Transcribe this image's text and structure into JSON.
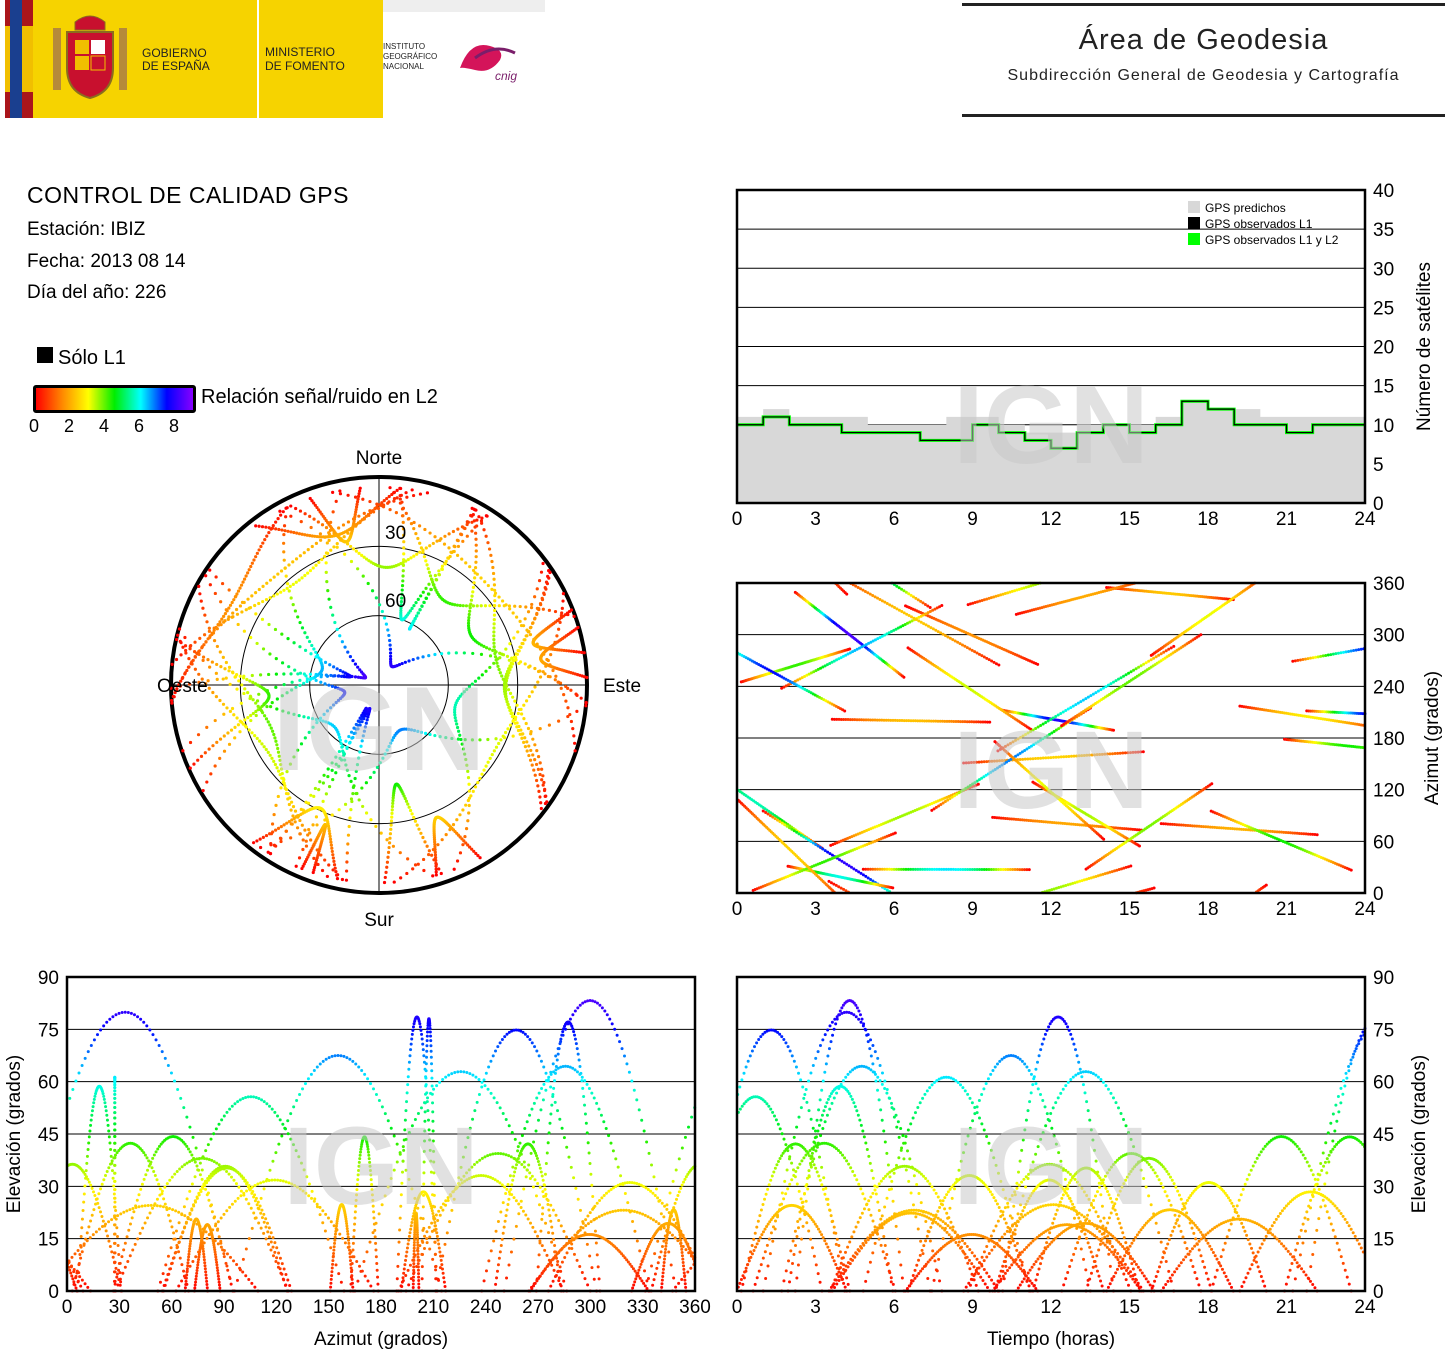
{
  "header": {
    "gov_label_1": "GOBIERNO",
    "gov_label_2": "DE ESPAÑA",
    "ministry_1": "MINISTERIO",
    "ministry_2": "DE FOMENTO",
    "institute_1": "INSTITUTO",
    "institute_2": "GEOGRÁFICO",
    "institute_3": "NACIONAL",
    "cnig_logo_text": "cnig",
    "area_title": "Área de Geodesia",
    "area_subtitle": "Subdirección General de Geodesia y Cartografía"
  },
  "report": {
    "title": "CONTROL DE CALIDAD GPS",
    "station": "Estación: IBIZ",
    "date": "Fecha: 2013 08 14",
    "doy": "Día del año: 226"
  },
  "legend": {
    "l1_only": "Sólo L1",
    "snr_label": "Relación señal/ruido en L2",
    "snr_ticks": [
      "0",
      "2",
      "4",
      "6",
      "8"
    ],
    "snr_colors": [
      "#ff0000",
      "#ff8800",
      "#ffff00",
      "#00ee00",
      "#00ffff",
      "#0000ff",
      "#8800ff"
    ]
  },
  "watermark": "IGN",
  "colors": {
    "predicted": "#d8d8d8",
    "observed_l1": "#000000",
    "observed_l1_l2": "#00ff00",
    "grid": "#000000"
  },
  "chart_data": [
    {
      "type": "line",
      "id": "satellite-count",
      "ylabel": "Número de satélites",
      "xlim": [
        0,
        24
      ],
      "ylim": [
        0,
        40
      ],
      "x_ticks": [
        "0",
        "3",
        "6",
        "9",
        "12",
        "15",
        "18",
        "21",
        "24"
      ],
      "y_ticks": [
        "0",
        "5",
        "10",
        "15",
        "20",
        "25",
        "30",
        "35",
        "40"
      ],
      "legend": [
        "GPS predichos",
        "GPS observados L1",
        "GPS observados L1 y L2"
      ],
      "grid": true,
      "series": [
        {
          "name": "GPS predichos",
          "x": [
            0,
            1,
            2,
            3,
            4,
            5,
            6,
            7,
            8,
            9,
            10,
            11,
            12,
            13,
            14,
            15,
            16,
            17,
            18,
            19,
            20,
            21,
            22,
            23,
            24
          ],
          "y": [
            11,
            12,
            11,
            11,
            11,
            10,
            10,
            10,
            11,
            11,
            10,
            9,
            9,
            10,
            10,
            10,
            11,
            13,
            12,
            12,
            11,
            11,
            11,
            11,
            12
          ]
        },
        {
          "name": "GPS observados L1",
          "x": [
            0,
            1,
            2,
            3,
            4,
            5,
            6,
            7,
            8,
            9,
            10,
            11,
            12,
            13,
            14,
            15,
            16,
            17,
            18,
            19,
            20,
            21,
            22,
            23,
            24
          ],
          "y": [
            10,
            11,
            10,
            10,
            9,
            9,
            9,
            8,
            8,
            10,
            9,
            8,
            7,
            9,
            10,
            9,
            10,
            13,
            12,
            10,
            10,
            9,
            10,
            10,
            10
          ]
        },
        {
          "name": "GPS observados L1 y L2",
          "x": [
            0,
            1,
            2,
            3,
            4,
            5,
            6,
            7,
            8,
            9,
            10,
            11,
            12,
            13,
            14,
            15,
            16,
            17,
            18,
            19,
            20,
            21,
            22,
            23,
            24
          ],
          "y": [
            10,
            11,
            10,
            10,
            9,
            9,
            9,
            8,
            8,
            10,
            9,
            8,
            7,
            9,
            10,
            9,
            10,
            13,
            12,
            10,
            10,
            9,
            10,
            10,
            10
          ]
        }
      ]
    },
    {
      "type": "scatter",
      "id": "skyplot",
      "polar": true,
      "direction_labels": {
        "north": "Norte",
        "south": "Sur",
        "east": "Este",
        "west": "Oeste"
      },
      "ring_labels": [
        "30",
        "60"
      ],
      "tracks_note_values": "elevation/azimuth tracks of GPS satellites colored by L2 SNR"
    },
    {
      "type": "scatter",
      "id": "azimuth-vs-time",
      "ylabel": "Azimut (grados)",
      "xlim": [
        0,
        24
      ],
      "ylim": [
        0,
        360
      ],
      "x_ticks": [
        "0",
        "3",
        "6",
        "9",
        "12",
        "15",
        "18",
        "21",
        "24"
      ],
      "y_ticks": [
        "0",
        "60",
        "120",
        "180",
        "240",
        "300",
        "360"
      ],
      "grid": true
    },
    {
      "type": "scatter",
      "id": "elevation-vs-azimuth",
      "xlabel": "Azimut (grados)",
      "ylabel": "Elevación (grados)",
      "xlim": [
        0,
        360
      ],
      "ylim": [
        0,
        90
      ],
      "x_ticks": [
        "0",
        "30",
        "60",
        "90",
        "120",
        "150",
        "180",
        "210",
        "240",
        "270",
        "300",
        "330",
        "360"
      ],
      "y_ticks": [
        "0",
        "15",
        "30",
        "45",
        "60",
        "75",
        "90"
      ],
      "grid": true
    },
    {
      "type": "scatter",
      "id": "elevation-vs-time",
      "xlabel": "Tiempo (horas)",
      "ylabel": "Elevación (grados)",
      "xlim": [
        0,
        24
      ],
      "ylim": [
        0,
        90
      ],
      "x_ticks": [
        "0",
        "3",
        "6",
        "9",
        "12",
        "15",
        "18",
        "21",
        "24"
      ],
      "y_ticks": [
        "0",
        "15",
        "30",
        "45",
        "60",
        "75",
        "90"
      ],
      "grid": true
    }
  ]
}
